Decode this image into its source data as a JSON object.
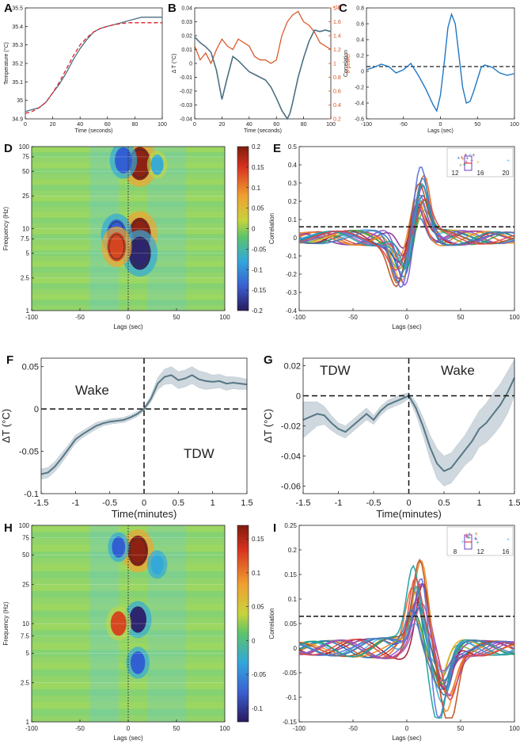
{
  "colors": {
    "temp": "#4b7080",
    "fit": "#e0202a",
    "theta": "#d94e1f",
    "corr": "#1f77c4",
    "band": "#cfd8de",
    "mean": "#567786",
    "contour": "#333333",
    "grid": "#d4dde0"
  },
  "chart_data": [
    {
      "panel": "A",
      "type": "line",
      "xlabel": "Time (seconds)",
      "ylabel": "Temperature (°C)",
      "xlim": [
        0,
        100
      ],
      "ylim": [
        34.9,
        35.5
      ],
      "xticks": [
        "0",
        "20",
        "40",
        "60",
        "80",
        "100"
      ],
      "yticks": [
        "34.9",
        "35",
        "35.1",
        "35.2",
        "35.3",
        "35.4",
        "35.5"
      ],
      "series": [
        {
          "name": "temperature",
          "x": [
            0,
            5,
            10,
            15,
            20,
            25,
            30,
            35,
            40,
            45,
            50,
            55,
            60,
            65,
            70,
            75,
            80,
            85,
            90,
            95,
            100
          ],
          "y": [
            34.94,
            34.95,
            34.96,
            34.99,
            35.04,
            35.09,
            35.15,
            35.22,
            35.28,
            35.33,
            35.37,
            35.39,
            35.4,
            35.41,
            35.42,
            35.43,
            35.44,
            35.45,
            35.45,
            35.45,
            35.45
          ]
        },
        {
          "name": "sigmoid fit",
          "dashed": true,
          "x": [
            0,
            5,
            10,
            15,
            20,
            25,
            30,
            35,
            40,
            45,
            50,
            55,
            60,
            65,
            70,
            75,
            80,
            85,
            90,
            95,
            100
          ],
          "y": [
            34.93,
            34.94,
            34.96,
            34.99,
            35.04,
            35.1,
            35.17,
            35.24,
            35.3,
            35.34,
            35.37,
            35.39,
            35.4,
            35.41,
            35.415,
            35.42,
            35.42,
            35.42,
            35.42,
            35.42,
            35.42
          ]
        }
      ]
    },
    {
      "panel": "B",
      "type": "line",
      "xlabel": "Time (seconds)",
      "ylabel": "Δ T (°C)",
      "ylabel_right": "θ-power",
      "exponent": "×10⁻⁷",
      "xlim": [
        0,
        100
      ],
      "ylim": [
        -0.04,
        0.04
      ],
      "ylim_right": [
        0.2,
        1.8
      ],
      "xticks": [
        "0",
        "20",
        "40",
        "60",
        "80",
        "100"
      ],
      "yticks": [
        "-0.04",
        "-0.03",
        "-0.02",
        "-0.01",
        "0",
        "0.01",
        "0.02",
        "0.03",
        "0.04"
      ],
      "yticks_right": [
        "0.2",
        "0.4",
        "0.6",
        "0.8",
        "1",
        "1.2",
        "1.4",
        "1.6",
        "1.8"
      ],
      "series": [
        {
          "name": "ΔT",
          "axis": "left",
          "x": [
            0,
            4,
            8,
            12,
            16,
            20,
            24,
            28,
            32,
            36,
            40,
            44,
            48,
            52,
            56,
            60,
            64,
            68,
            70,
            72,
            76,
            80,
            84,
            88,
            92,
            96,
            100
          ],
          "y": [
            0.019,
            0.015,
            0.012,
            0.008,
            -0.005,
            -0.026,
            -0.01,
            0.005,
            0.002,
            -0.002,
            -0.006,
            -0.008,
            -0.01,
            -0.012,
            -0.017,
            -0.025,
            -0.034,
            -0.04,
            -0.036,
            -0.028,
            -0.01,
            0.004,
            0.016,
            0.024,
            0.023,
            0.024,
            0.023
          ]
        },
        {
          "name": "θ-power",
          "axis": "right",
          "x": [
            0,
            4,
            8,
            12,
            16,
            20,
            24,
            28,
            32,
            36,
            40,
            44,
            48,
            52,
            56,
            60,
            64,
            68,
            72,
            76,
            80,
            84,
            88,
            92,
            96,
            100
          ],
          "y": [
            1.25,
            1.05,
            1.15,
            1.0,
            1.2,
            1.35,
            1.25,
            1.2,
            1.35,
            1.3,
            1.25,
            1.1,
            1.05,
            1.05,
            1.0,
            1.05,
            1.4,
            1.6,
            1.7,
            1.75,
            1.6,
            1.55,
            1.45,
            1.3,
            1.25,
            1.2
          ]
        }
      ]
    },
    {
      "panel": "C",
      "type": "line",
      "xlabel": "Lags (sec)",
      "ylabel": "Correlation",
      "xlim": [
        -100,
        100
      ],
      "ylim": [
        -0.6,
        0.8
      ],
      "threshold": 0.06,
      "xticks": [
        "-100",
        "-50",
        "0",
        "50",
        "100"
      ],
      "yticks": [
        "-0.6",
        "-0.4",
        "-0.2",
        "0",
        "0.2",
        "0.4",
        "0.6",
        "0.8"
      ],
      "series": [
        {
          "name": "cross-correlation",
          "x": [
            -100,
            -90,
            -80,
            -70,
            -60,
            -50,
            -40,
            -30,
            -20,
            -10,
            -5,
            0,
            5,
            10,
            15,
            20,
            25,
            30,
            35,
            40,
            45,
            50,
            55,
            60,
            70,
            80,
            90,
            100
          ],
          "y": [
            0.02,
            0.05,
            0.09,
            0.06,
            -0.02,
            0.02,
            0.1,
            -0.05,
            -0.22,
            -0.42,
            -0.5,
            -0.3,
            0.1,
            0.55,
            0.72,
            0.6,
            0.2,
            -0.2,
            -0.4,
            -0.38,
            -0.25,
            -0.1,
            0.05,
            0.08,
            0.05,
            -0.02,
            -0.05,
            -0.03
          ]
        }
      ]
    },
    {
      "panel": "D",
      "type": "heatmap",
      "xlabel": "Lags (sec)",
      "ylabel": "Frequency (Hz)",
      "xlim": [
        -100,
        100
      ],
      "ylim": [
        1,
        100
      ],
      "xticks": [
        "-100",
        "-50",
        "0",
        "50",
        "100"
      ],
      "yticks": [
        "1",
        "2.5",
        "5",
        "7.5",
        "10",
        "25",
        "50",
        "75",
        "100"
      ],
      "colorbar_ticks": [
        "0.2",
        "0.15",
        "0.1",
        "0.05",
        "0",
        "-0.05",
        "-0.1",
        "-0.15",
        "-0.2"
      ],
      "clim": [
        -0.2,
        0.2
      ],
      "blobs": [
        {
          "lag": 12,
          "freq": 62,
          "value": 0.2
        },
        {
          "lag": 12,
          "freq": 8.5,
          "value": 0.2
        },
        {
          "lag": 12,
          "freq": 5,
          "value": -0.2
        },
        {
          "lag": -12,
          "freq": 8.5,
          "value": -0.16
        },
        {
          "lag": -12,
          "freq": 6,
          "value": 0.15
        },
        {
          "lag": -5,
          "freq": 68,
          "value": -0.12
        },
        {
          "lag": 30,
          "freq": 60,
          "value": -0.05
        }
      ]
    },
    {
      "panel": "E",
      "type": "line",
      "xlabel": "Lags (sec)",
      "ylabel": "Correlation",
      "xlim": [
        -100,
        100
      ],
      "ylim": [
        -0.4,
        0.5
      ],
      "threshold": 0.06,
      "xticks": [
        "-100",
        "-50",
        "0",
        "50",
        "100"
      ],
      "yticks": [
        "-0.4",
        "-0.3",
        "-0.2",
        "-0.1",
        "0",
        "0.1",
        "0.2",
        "0.3",
        "0.4",
        "0.5"
      ],
      "inset_ticks": [
        "12",
        "16",
        "20"
      ],
      "curves": 20,
      "peak_lag": 12,
      "trough_lag": -3
    },
    {
      "panel": "F",
      "type": "line",
      "xlabel": "Time(minutes)",
      "ylabel": "ΔT (°C)",
      "xlim": [
        -1.5,
        1.5
      ],
      "ylim": [
        -0.1,
        0.06
      ],
      "xticks": [
        "-1.5",
        "-1",
        "-0.5",
        "0",
        "0.5",
        "1",
        "1.5"
      ],
      "yticks": [
        "-0.1",
        "-0.05",
        "0",
        "0.05"
      ],
      "annotations": [
        "Wake",
        "TDW"
      ],
      "series": [
        {
          "name": "mean ΔT",
          "x": [
            -1.5,
            -1.4,
            -1.3,
            -1.2,
            -1.1,
            -1.0,
            -0.9,
            -0.8,
            -0.7,
            -0.6,
            -0.5,
            -0.4,
            -0.3,
            -0.2,
            -0.1,
            0,
            0.1,
            0.2,
            0.3,
            0.4,
            0.5,
            0.6,
            0.7,
            0.8,
            0.9,
            1.0,
            1.1,
            1.2,
            1.3,
            1.4,
            1.5
          ],
          "y": [
            -0.077,
            -0.075,
            -0.068,
            -0.058,
            -0.047,
            -0.036,
            -0.03,
            -0.025,
            -0.02,
            -0.017,
            -0.015,
            -0.014,
            -0.013,
            -0.01,
            -0.006,
            0.0,
            0.012,
            0.03,
            0.038,
            0.04,
            0.034,
            0.036,
            0.04,
            0.035,
            0.033,
            0.032,
            0.033,
            0.03,
            0.031,
            0.03,
            0.029
          ],
          "band": [
            0.006,
            0.006,
            0.006,
            0.006,
            0.005,
            0.005,
            0.004,
            0.004,
            0.004,
            0.003,
            0.003,
            0.003,
            0.003,
            0.003,
            0.003,
            0.002,
            0.004,
            0.007,
            0.009,
            0.01,
            0.01,
            0.01,
            0.01,
            0.01,
            0.01,
            0.008,
            0.008,
            0.008,
            0.007,
            0.007,
            0.006
          ]
        }
      ]
    },
    {
      "panel": "G",
      "type": "line",
      "xlabel": "Time(minutes)",
      "ylabel": "ΔT (°C)",
      "xlim": [
        -1.5,
        1.5
      ],
      "ylim": [
        -0.065,
        0.025
      ],
      "xticks": [
        "-1.5",
        "-1",
        "-0.5",
        "0",
        "0.5",
        "1",
        "1.5"
      ],
      "yticks": [
        "-0.06",
        "-0.04",
        "-0.02",
        "0",
        "0.02"
      ],
      "annotations": [
        "TDW",
        "Wake"
      ],
      "series": [
        {
          "name": "mean ΔT",
          "x": [
            -1.5,
            -1.4,
            -1.3,
            -1.2,
            -1.1,
            -1.0,
            -0.9,
            -0.8,
            -0.7,
            -0.6,
            -0.5,
            -0.4,
            -0.3,
            -0.2,
            -0.1,
            0,
            0.1,
            0.2,
            0.3,
            0.4,
            0.5,
            0.6,
            0.7,
            0.8,
            0.9,
            1.0,
            1.1,
            1.2,
            1.3,
            1.4,
            1.5
          ],
          "y": [
            -0.016,
            -0.014,
            -0.012,
            -0.013,
            -0.018,
            -0.022,
            -0.024,
            -0.02,
            -0.016,
            -0.012,
            -0.016,
            -0.01,
            -0.006,
            -0.004,
            -0.002,
            0.0,
            -0.008,
            -0.02,
            -0.034,
            -0.045,
            -0.05,
            -0.048,
            -0.042,
            -0.036,
            -0.03,
            -0.022,
            -0.018,
            -0.012,
            -0.006,
            0.002,
            0.012
          ],
          "band": [
            0.012,
            0.01,
            0.008,
            0.006,
            0.005,
            0.004,
            0.004,
            0.004,
            0.004,
            0.004,
            0.003,
            0.003,
            0.003,
            0.003,
            0.003,
            0.002,
            0.004,
            0.006,
            0.008,
            0.01,
            0.01,
            0.01,
            0.01,
            0.01,
            0.012,
            0.012,
            0.013,
            0.014,
            0.014,
            0.014,
            0.012
          ]
        }
      ]
    },
    {
      "panel": "H",
      "type": "heatmap",
      "xlabel": "Lags (sec)",
      "ylabel": "Frequency (Hz)",
      "xlim": [
        -100,
        100
      ],
      "ylim": [
        1,
        100
      ],
      "xticks": [
        "-100",
        "-50",
        "0",
        "50",
        "100"
      ],
      "yticks": [
        "1",
        "2.5",
        "5",
        "7.5",
        "10",
        "25",
        "50",
        "75",
        "100"
      ],
      "colorbar_ticks": [
        "0.15",
        "0.1",
        "0.05",
        "0",
        "-0.05",
        "-0.1"
      ],
      "clim": [
        -0.12,
        0.17
      ],
      "blobs": [
        {
          "lag": 10,
          "freq": 55,
          "value": 0.17
        },
        {
          "lag": 10,
          "freq": 11,
          "value": -0.12
        },
        {
          "lag": 10,
          "freq": 4,
          "value": -0.08
        },
        {
          "lag": -10,
          "freq": 10,
          "value": 0.1
        },
        {
          "lag": -10,
          "freq": 60,
          "value": -0.06
        },
        {
          "lag": 30,
          "freq": 40,
          "value": -0.05
        }
      ]
    },
    {
      "panel": "I",
      "type": "line",
      "xlabel": "Lags (sec)",
      "ylabel": "Correlation",
      "xlim": [
        -100,
        100
      ],
      "ylim": [
        -0.15,
        0.25
      ],
      "threshold": 0.065,
      "xticks": [
        "-100",
        "-50",
        "0",
        "50",
        "100"
      ],
      "yticks": [
        "-0.15",
        "-0.1",
        "-0.05",
        "0",
        "0.05",
        "0.1",
        "0.15",
        "0.2",
        "0.25"
      ],
      "inset_ticks": [
        "8",
        "12",
        "16"
      ],
      "curves": 20,
      "peak_lag": 10,
      "trough_lag": 35
    }
  ]
}
